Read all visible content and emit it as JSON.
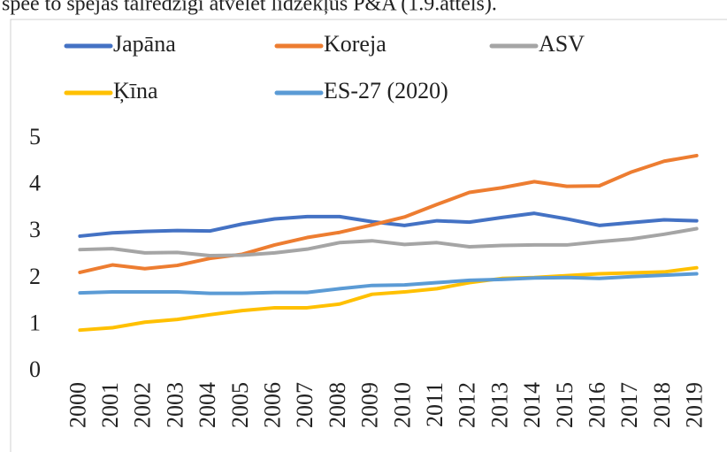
{
  "caption": "spēe to spējas tālredzīgi atvēlēt līdzekļus P&A (1.9.attēls).",
  "chart_data": {
    "type": "line",
    "categories": [
      "2000",
      "2001",
      "2002",
      "2003",
      "2004",
      "2005",
      "2006",
      "2007",
      "2008",
      "2009",
      "2010",
      "2011",
      "2012",
      "2013",
      "2014",
      "2015",
      "2016",
      "2017",
      "2018",
      "2019"
    ],
    "series": [
      {
        "name": "Japāna",
        "color": "#4472c4",
        "values": [
          2.91,
          2.98,
          3.01,
          3.03,
          3.02,
          3.17,
          3.28,
          3.33,
          3.33,
          3.22,
          3.14,
          3.24,
          3.21,
          3.31,
          3.4,
          3.28,
          3.14,
          3.2,
          3.26,
          3.24
        ]
      },
      {
        "name": "Koreja",
        "color": "#ed7d31",
        "values": [
          2.13,
          2.29,
          2.21,
          2.28,
          2.43,
          2.52,
          2.72,
          2.88,
          2.99,
          3.15,
          3.32,
          3.59,
          3.85,
          3.95,
          4.08,
          3.98,
          3.99,
          4.29,
          4.52,
          4.64
        ]
      },
      {
        "name": "ASV",
        "color": "#a5a5a5",
        "values": [
          2.62,
          2.64,
          2.55,
          2.56,
          2.49,
          2.5,
          2.55,
          2.63,
          2.77,
          2.81,
          2.73,
          2.77,
          2.68,
          2.71,
          2.72,
          2.72,
          2.79,
          2.85,
          2.95,
          3.07
        ]
      },
      {
        "name": "Ķīna",
        "color": "#ffc000",
        "values": [
          0.89,
          0.94,
          1.06,
          1.12,
          1.22,
          1.31,
          1.37,
          1.37,
          1.45,
          1.66,
          1.71,
          1.78,
          1.91,
          2.0,
          2.02,
          2.06,
          2.1,
          2.12,
          2.14,
          2.23
        ]
      },
      {
        "name": "ES-27 (2020)",
        "color": "#5b9bd5",
        "values": [
          1.69,
          1.71,
          1.71,
          1.71,
          1.68,
          1.68,
          1.7,
          1.7,
          1.78,
          1.85,
          1.86,
          1.91,
          1.96,
          1.98,
          2.01,
          2.02,
          2.0,
          2.04,
          2.07,
          2.1
        ]
      }
    ],
    "ylim": [
      0,
      5
    ],
    "yticks": [
      0,
      1,
      2,
      3,
      4,
      5
    ],
    "grid": false,
    "legend": "top"
  }
}
